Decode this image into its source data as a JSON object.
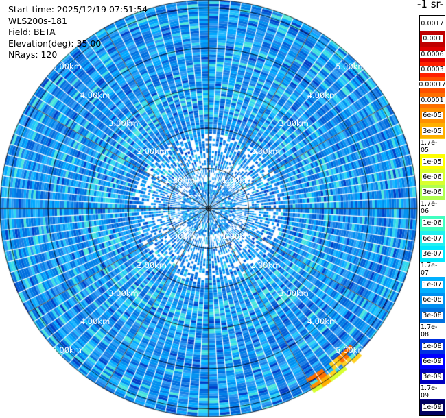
{
  "info": {
    "start_time": "Start time: 2025/12/19 07:51:54",
    "instrument": "WLS200s-181",
    "field": "Field: BETA",
    "elevation": "Elevation(deg): 35.00",
    "nrays": "NRays: 120"
  },
  "colorbar": {
    "title": "-1 sr-",
    "labels": [
      "0.0017",
      "0.001",
      "0.0006",
      "0.0003",
      "0.00017",
      "0.0001",
      "6e-05",
      "3e-05",
      "1.7e-05",
      "1e-05",
      "6e-06",
      "3e-06",
      "1.7e-06",
      "1e-06",
      "6e-07",
      "3e-07",
      "1.7e-07",
      "1e-07",
      "6e-08",
      "3e-08",
      "1.7e-08",
      "1e-08",
      "6e-09",
      "3e-09",
      "1.7e-09",
      "1e-09"
    ],
    "colors": [
      "#ffffff",
      "#c00000",
      "#e00000",
      "#ff2000",
      "#ff5000",
      "#ff7000",
      "#ff9000",
      "#ffb000",
      "#ffd020",
      "#ffff00",
      "#d8ff30",
      "#b0ff50",
      "#80ff80",
      "#40ffc0",
      "#20f0f0",
      "#00e8ff",
      "#00d8ff",
      "#00b0ff",
      "#0090f0",
      "#0070e0",
      "#0050d0",
      "#0030e0",
      "#0000ff",
      "#0000c0",
      "#000090",
      "#000060"
    ]
  },
  "chart_data": {
    "type": "heatmap",
    "projection": "polar (PPI scan)",
    "range_rings_km": [
      1,
      2,
      3,
      4,
      5
    ],
    "range_ring_labels": [
      "1.00km",
      "2.00km",
      "3.00km",
      "4.00km",
      "5.00km"
    ],
    "field": "BETA",
    "elevation_deg": 35.0,
    "n_rays": 120,
    "background_level": "6e-08",
    "background_range": [
      "3e-08",
      "1e-07"
    ],
    "hotspot": {
      "azimuth_deg": 142,
      "range_km": [
        4.9,
        5.3
      ],
      "values": [
        "3e-05",
        "6e-05"
      ]
    }
  }
}
